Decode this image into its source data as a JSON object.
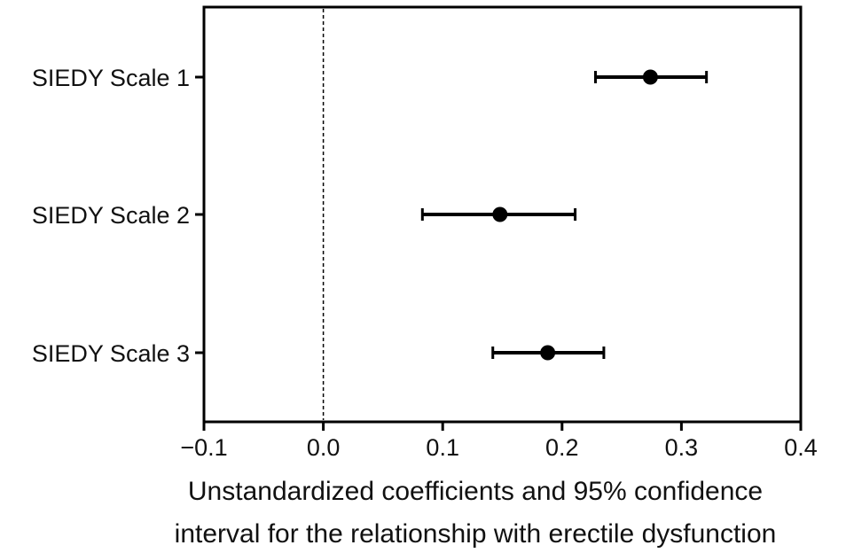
{
  "chart_data": {
    "type": "scatter",
    "subtype": "forest-plot",
    "title": "",
    "xlabel_lines": [
      "Unstandardized coefficients and 95% confidence",
      "interval for the relationship with erectile dysfunction"
    ],
    "ylabel": "",
    "xlim": [
      -0.1,
      0.4
    ],
    "x_ticks": [
      -0.1,
      0.0,
      0.1,
      0.2,
      0.3,
      0.4
    ],
    "x_tick_labels": [
      "−0.1",
      "0.0",
      "0.1",
      "0.2",
      "0.3",
      "0.4"
    ],
    "reference_line": {
      "x": 0.0,
      "style": "dashed"
    },
    "grid": false,
    "categories": [
      "SIEDY Scale 1",
      "SIEDY Scale 2",
      "SIEDY Scale 3"
    ],
    "estimates": [
      0.274,
      0.148,
      0.188
    ],
    "ci_lower": [
      0.228,
      0.083,
      0.142
    ],
    "ci_upper": [
      0.321,
      0.211,
      0.235
    ],
    "colors": {
      "marker": "#000000",
      "axis": "#000000",
      "text": "#111111"
    }
  }
}
